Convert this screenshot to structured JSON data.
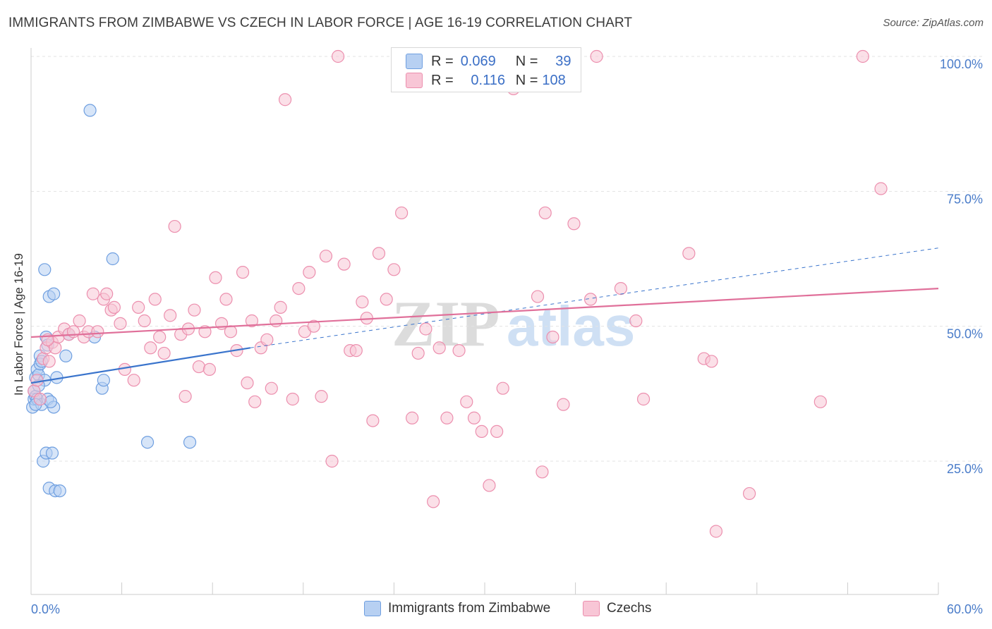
{
  "title": "IMMIGRANTS FROM ZIMBABWE VS CZECH IN LABOR FORCE | AGE 16-19 CORRELATION CHART",
  "source": "Source: ZipAtlas.com",
  "watermark": {
    "zip": "ZIP",
    "atlas": "atlas"
  },
  "legend_top": [
    {
      "r_label": "R =",
      "r": "0.069",
      "n_label": "N =",
      "n": "39",
      "color": "#aac8f0"
    },
    {
      "r_label": "R =",
      "r": "0.116",
      "n_label": "N =",
      "n": "108",
      "color": "#f5b8cb"
    }
  ],
  "chart_data": {
    "type": "scatter",
    "ylabel": "In Labor Force | Age 16-19",
    "xlim": [
      0,
      60
    ],
    "ylim": [
      0,
      105
    ],
    "x_ticks": [
      {
        "v": 0,
        "label": "0.0%"
      },
      {
        "v": 60,
        "label": "60.0%"
      }
    ],
    "y_ticks": [
      {
        "v": 25,
        "label": "25.0%"
      },
      {
        "v": 50,
        "label": "50.0%"
      },
      {
        "v": 75,
        "label": "75.0%"
      },
      {
        "v": 100,
        "label": "100.0%"
      }
    ],
    "grid": true,
    "legend_position": "bottom-center",
    "series": [
      {
        "name": "Immigrants from Zimbabwe",
        "color": "#6f9fe0",
        "fill": "#b7d0f2",
        "trend_color": "#3a74cc",
        "trend": {
          "x0": 0,
          "y0": 39.5,
          "x1": 14.5,
          "y1": 46.0,
          "dash_to_x": 60,
          "dash_to_y": 64.5
        },
        "points": [
          [
            0.1,
            35.0
          ],
          [
            0.2,
            38.0
          ],
          [
            0.2,
            36.5
          ],
          [
            0.3,
            40.5
          ],
          [
            0.3,
            37.0
          ],
          [
            0.4,
            42.0
          ],
          [
            0.4,
            36.5
          ],
          [
            0.5,
            41.0
          ],
          [
            0.6,
            44.5
          ],
          [
            0.6,
            43.0
          ],
          [
            0.7,
            35.5
          ],
          [
            0.8,
            25.0
          ],
          [
            0.9,
            60.5
          ],
          [
            0.9,
            40.0
          ],
          [
            1.0,
            26.5
          ],
          [
            1.0,
            48.0
          ],
          [
            1.1,
            46.5
          ],
          [
            1.1,
            36.5
          ],
          [
            1.2,
            55.5
          ],
          [
            1.2,
            20.0
          ],
          [
            1.4,
            26.5
          ],
          [
            1.5,
            35.0
          ],
          [
            1.5,
            56.0
          ],
          [
            1.6,
            19.5
          ],
          [
            1.7,
            40.5
          ],
          [
            1.9,
            19.5
          ],
          [
            2.3,
            44.5
          ],
          [
            2.5,
            48.5
          ],
          [
            3.9,
            90.0
          ],
          [
            4.2,
            48.0
          ],
          [
            4.7,
            38.5
          ],
          [
            4.8,
            40.0
          ],
          [
            5.4,
            62.5
          ],
          [
            7.7,
            28.5
          ],
          [
            10.5,
            28.5
          ],
          [
            0.3,
            35.5
          ],
          [
            0.5,
            39.0
          ],
          [
            0.7,
            43.5
          ],
          [
            1.3,
            36.0
          ]
        ]
      },
      {
        "name": "Czechs",
        "color": "#ec8fae",
        "fill": "#f8c6d6",
        "trend_color": "#e0709a",
        "trend": {
          "x0": 0,
          "y0": 48.0,
          "x1": 60,
          "y1": 57.0
        },
        "points": [
          [
            0.2,
            38.0
          ],
          [
            0.4,
            40.0
          ],
          [
            0.6,
            36.5
          ],
          [
            0.8,
            44.0
          ],
          [
            1.0,
            46.0
          ],
          [
            1.2,
            43.5
          ],
          [
            1.4,
            47.0
          ],
          [
            1.6,
            46.0
          ],
          [
            1.8,
            48.0
          ],
          [
            2.2,
            49.5
          ],
          [
            2.5,
            48.5
          ],
          [
            2.8,
            49.0
          ],
          [
            3.2,
            51.0
          ],
          [
            3.5,
            48.0
          ],
          [
            3.8,
            49.0
          ],
          [
            4.1,
            56.0
          ],
          [
            4.4,
            49.0
          ],
          [
            4.8,
            55.0
          ],
          [
            5.0,
            56.0
          ],
          [
            5.3,
            53.0
          ],
          [
            5.5,
            53.5
          ],
          [
            5.9,
            50.5
          ],
          [
            6.2,
            42.0
          ],
          [
            6.8,
            40.0
          ],
          [
            7.1,
            53.5
          ],
          [
            7.5,
            51.0
          ],
          [
            7.9,
            46.0
          ],
          [
            8.2,
            55.0
          ],
          [
            8.5,
            48.0
          ],
          [
            8.8,
            45.0
          ],
          [
            9.2,
            52.0
          ],
          [
            9.5,
            68.5
          ],
          [
            9.9,
            48.5
          ],
          [
            10.2,
            37.0
          ],
          [
            10.4,
            49.5
          ],
          [
            10.8,
            53.0
          ],
          [
            11.1,
            42.5
          ],
          [
            11.5,
            49.0
          ],
          [
            11.8,
            42.0
          ],
          [
            12.2,
            59.0
          ],
          [
            12.6,
            50.5
          ],
          [
            12.9,
            55.0
          ],
          [
            13.2,
            49.0
          ],
          [
            13.6,
            45.5
          ],
          [
            14.0,
            60.0
          ],
          [
            14.3,
            39.5
          ],
          [
            14.6,
            51.0
          ],
          [
            14.8,
            36.0
          ],
          [
            15.2,
            46.0
          ],
          [
            15.6,
            47.5
          ],
          [
            15.9,
            38.5
          ],
          [
            16.2,
            51.0
          ],
          [
            16.5,
            53.5
          ],
          [
            16.8,
            92.0
          ],
          [
            17.3,
            36.5
          ],
          [
            17.7,
            57.0
          ],
          [
            18.1,
            49.0
          ],
          [
            18.4,
            60.0
          ],
          [
            18.7,
            50.0
          ],
          [
            19.2,
            37.0
          ],
          [
            19.5,
            63.0
          ],
          [
            19.9,
            25.0
          ],
          [
            20.3,
            100.0
          ],
          [
            20.7,
            61.5
          ],
          [
            21.1,
            45.5
          ],
          [
            21.5,
            45.5
          ],
          [
            21.9,
            54.5
          ],
          [
            22.2,
            51.5
          ],
          [
            22.6,
            32.5
          ],
          [
            23.0,
            63.5
          ],
          [
            23.5,
            55.0
          ],
          [
            24.0,
            60.5
          ],
          [
            24.5,
            71.0
          ],
          [
            25.2,
            33.0
          ],
          [
            25.6,
            45.0
          ],
          [
            26.1,
            49.5
          ],
          [
            26.6,
            17.5
          ],
          [
            27.0,
            46.0
          ],
          [
            27.5,
            33.0
          ],
          [
            28.3,
            45.5
          ],
          [
            28.8,
            36.0
          ],
          [
            29.3,
            33.0
          ],
          [
            29.8,
            30.5
          ],
          [
            30.3,
            20.5
          ],
          [
            30.8,
            30.5
          ],
          [
            31.2,
            38.5
          ],
          [
            31.9,
            94.0
          ],
          [
            33.0,
            99.0
          ],
          [
            33.5,
            55.5
          ],
          [
            33.8,
            23.0
          ],
          [
            34.0,
            71.0
          ],
          [
            34.5,
            48.0
          ],
          [
            35.2,
            35.5
          ],
          [
            35.9,
            69.0
          ],
          [
            37.0,
            55.0
          ],
          [
            37.4,
            100.0
          ],
          [
            39.0,
            57.0
          ],
          [
            40.0,
            51.0
          ],
          [
            40.5,
            36.5
          ],
          [
            43.5,
            63.5
          ],
          [
            44.5,
            44.0
          ],
          [
            45.0,
            43.5
          ],
          [
            45.3,
            12.0
          ],
          [
            47.5,
            19.0
          ],
          [
            52.2,
            36.0
          ],
          [
            55.0,
            100.0
          ],
          [
            56.2,
            75.5
          ],
          [
            1.1,
            47.5
          ]
        ]
      }
    ]
  }
}
